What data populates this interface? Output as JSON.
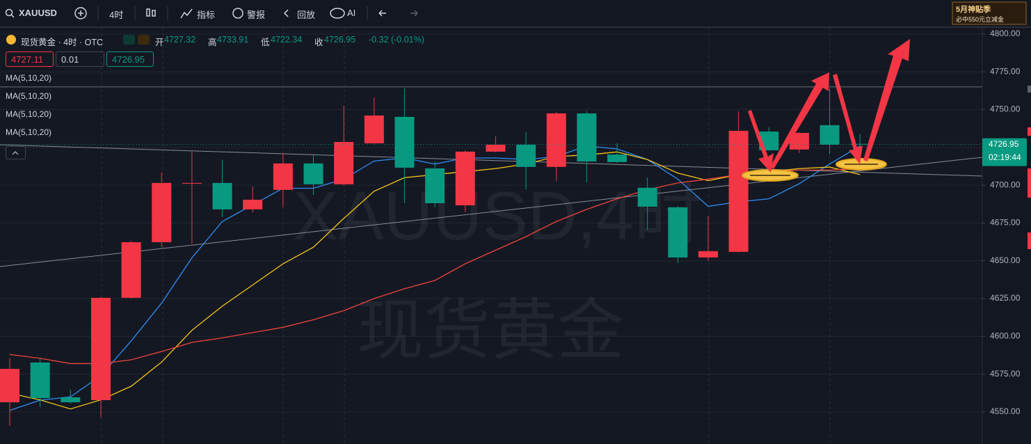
{
  "toolbar": {
    "symbol": "XAUUSD",
    "interval": "4时",
    "indicators": "指标",
    "alerts": "警报",
    "replay": "回放",
    "ai": "AI"
  },
  "banner": {
    "title": "5月神贴季",
    "subtitle": "必中550元立减金"
  },
  "legend": {
    "name": "现货黄金 · 4时 · OTC",
    "open_label": "开",
    "open": "4727.32",
    "high_label": "高",
    "high": "4733.91",
    "low_label": "低",
    "low": "4722.34",
    "close_label": "收",
    "close": "4726.95",
    "change": "-0.32 (-0.01%)",
    "sell": "4727.11",
    "quantity": "0.01",
    "buy": "4726.95",
    "indicators": [
      "MA(5,10,20)",
      "MA(5,10,20)",
      "MA(5,10,20)",
      "MA(5,10,20)"
    ]
  },
  "watermark": {
    "symbol": "XAUUSD,4时",
    "name": "现货黄金"
  },
  "chart_data": {
    "type": "candlestick",
    "open": [
      4556.4,
      4582.7,
      4559.7,
      4557.8,
      4625.5,
      4662.3,
      4701,
      4701.5,
      4684,
      4696.9,
      4714.4,
      4700.6,
      4727.7,
      4745.2,
      4711.1,
      4686.7,
      4722.2,
      4726.8,
      4712.1,
      4747.5,
      4720.3,
      4698.3,
      4685.4,
      4652.2,
      4655.9,
      4735.5,
      4723.6,
      4739.7,
      4727.32
    ],
    "high": [
      4585.5,
      4585.5,
      4564.7,
      4626,
      4663,
      4708.4,
      4722.2,
      4716.7,
      4699.2,
      4721.3,
      4720.4,
      4752.6,
      4758.1,
      4764.1,
      4715.7,
      4723,
      4732.3,
      4735.1,
      4748.5,
      4748.9,
      4727.7,
      4705.2,
      4686,
      4679.8,
      4748.9,
      4738.3,
      4735,
      4764.1,
      4733.91
    ],
    "low": [
      4540.8,
      4553.2,
      4555.5,
      4546.3,
      4625,
      4659,
      4661.4,
      4679,
      4682.1,
      4685.4,
      4693.6,
      4700,
      4727,
      4688.1,
      4685.4,
      4682.1,
      4721.8,
      4697.3,
      4702.9,
      4701.9,
      4714.8,
      4670.6,
      4648.5,
      4649.9,
      4655.5,
      4722.8,
      4721.3,
      4720.4,
      4722.34
    ],
    "close": [
      4578.5,
      4559.2,
      4556.4,
      4625.5,
      4662.3,
      4701.5,
      4701.5,
      4684,
      4690.4,
      4714.4,
      4700.6,
      4728.6,
      4746.1,
      4711.6,
      4688.1,
      4722.2,
      4726.8,
      4712.1,
      4747.5,
      4715.7,
      4715.3,
      4685.8,
      4652.2,
      4656.4,
      4736,
      4723.1,
      4734.6,
      4726.8,
      4726.95
    ],
    "up_color": "#f23645",
    "down_color": "#089981",
    "series": [
      {
        "color": "#2f8ff5",
        "values": [
          4551,
          4557.8,
          4560,
          4574,
          4597,
          4622,
          4652,
          4676,
          4687,
          4698,
          4698,
          4704,
          4716,
          4718,
          4714,
          4718,
          4718,
          4717,
          4719,
          4726,
          4724,
          4717,
          4704,
          4686,
          4689,
          4691,
          4701,
          4714,
          4726
        ]
      },
      {
        "color": "#f5c518",
        "values": [
          4562.4,
          4558,
          4552,
          4558,
          4567,
          4583,
          4604,
          4620,
          4634,
          4648,
          4659,
          4678,
          4696,
          4705,
          4707,
          4709,
          4711,
          4714,
          4719,
          4720,
          4722,
          4717,
          4708,
          4703,
          4707,
          4709,
          4711,
          4712,
          4707
        ]
      },
      {
        "color": "#f0453a",
        "values": [
          4588,
          4585.5,
          4582,
          4582,
          4584.5,
          4590,
          4596,
          4599,
          4602.5,
          4606,
          4611,
          4617,
          4625,
          4631.5,
          4637,
          4648,
          4657,
          4666,
          4676,
          4684,
          4691,
          4697,
          4701.5,
          4704,
          4707,
          4709,
          4710,
          4710,
          4711
        ]
      }
    ],
    "ylim": [
      4528.8,
      4804.1
    ],
    "yticks": [
      {
        "value": 4550,
        "label": "4550.00"
      },
      {
        "value": 4575,
        "label": "4575.00"
      },
      {
        "value": 4600,
        "label": "4600.00"
      },
      {
        "value": 4625,
        "label": "4625.00"
      },
      {
        "value": 4650,
        "label": "4650.00"
      },
      {
        "value": 4675,
        "label": "4675.00"
      },
      {
        "value": 4700,
        "label": "4700.00"
      },
      {
        "value": 4725,
        "label": "4725.00"
      },
      {
        "value": 4750,
        "label": "4750.00"
      },
      {
        "value": 4775,
        "label": "4775.00"
      },
      {
        "value": 4800,
        "label": "4800.00"
      }
    ],
    "grid": true,
    "last_price": 4726.95,
    "countdown": "02:19:44",
    "horizontal_line": 4765
  }
}
